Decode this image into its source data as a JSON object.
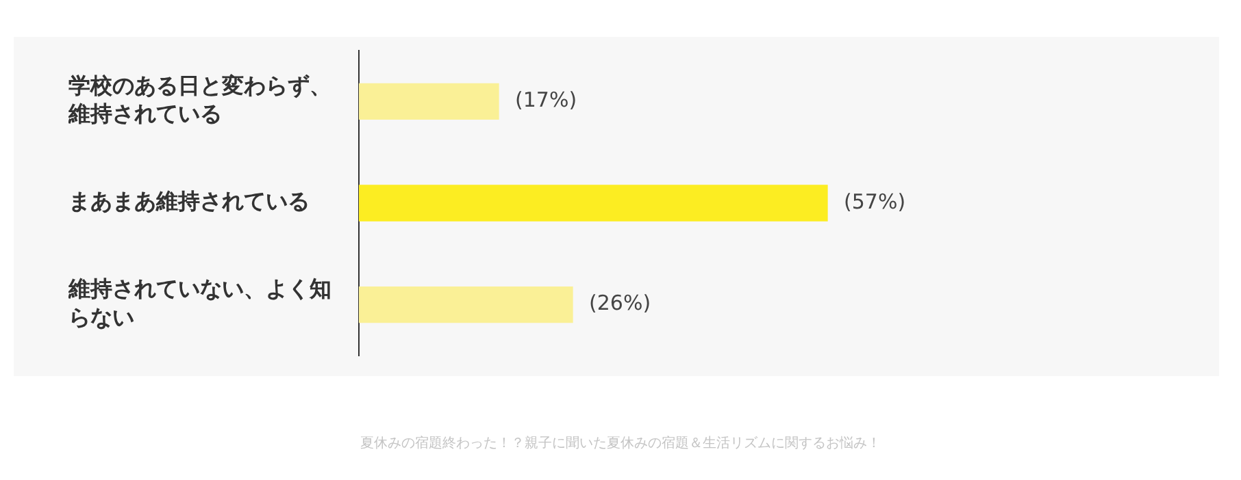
{
  "chart_data": {
    "type": "bar",
    "orientation": "horizontal",
    "categories": [
      "学校のある日と変わらず、維持されている",
      "まあまあ維持されている",
      "維持されていない、よく知らない"
    ],
    "values": [
      17,
      57,
      26
    ],
    "colors": [
      "#faf096",
      "#fced22",
      "#faf096"
    ],
    "value_labels": [
      "(17%)",
      "(57%)",
      "(26%)"
    ],
    "tick_labels": "y",
    "annotations": [
      "夏休みの宿題終わった！？親子に聞いた夏休みの宿題＆生活リズムに関するお悩み！"
    ]
  }
}
